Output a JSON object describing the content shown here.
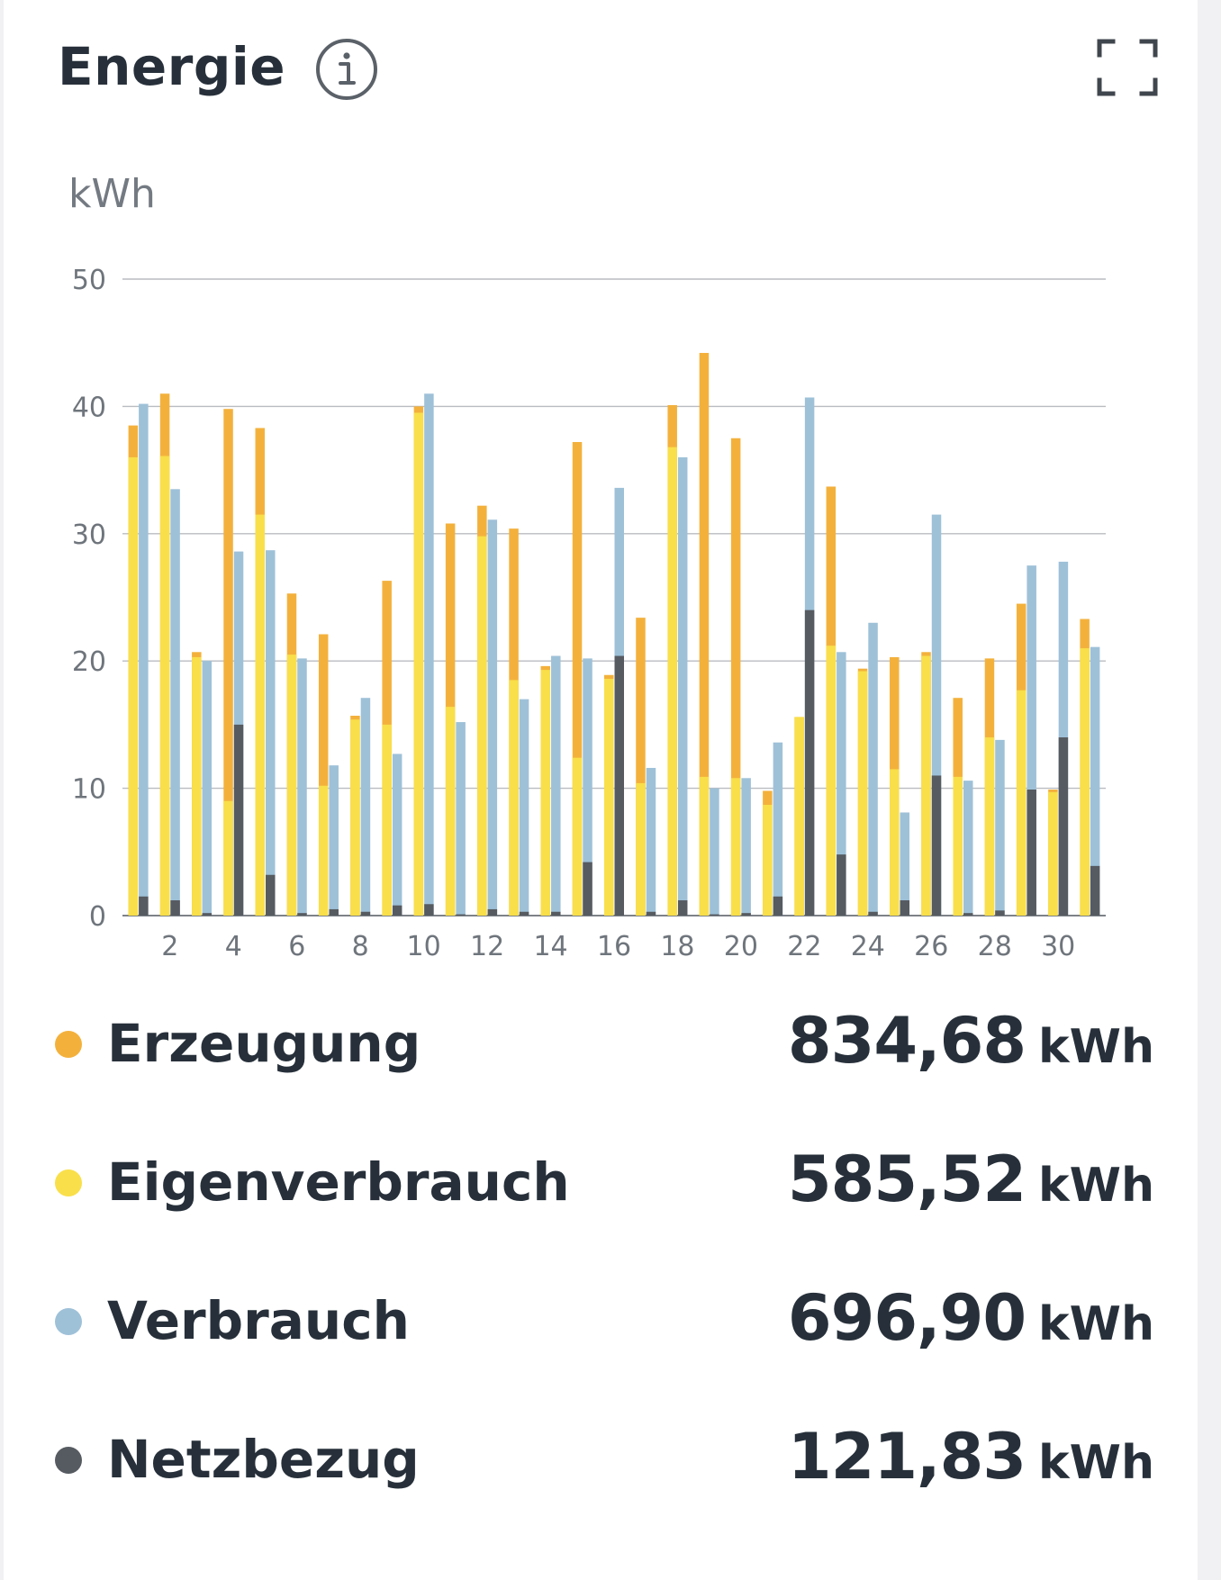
{
  "header": {
    "title": "Energie",
    "info_icon": "info-icon",
    "fullscreen_icon": "fullscreen-icon"
  },
  "chart_data": {
    "type": "bar",
    "title": "",
    "ylabel": "kWh",
    "xlabel": "",
    "ylim": [
      0,
      50
    ],
    "yticks": [
      0,
      10,
      20,
      30,
      40,
      50
    ],
    "xtick_labels": [
      "2",
      "4",
      "6",
      "8",
      "10",
      "12",
      "14",
      "16",
      "18",
      "20",
      "22",
      "24",
      "26",
      "28",
      "30"
    ],
    "x": [
      1,
      2,
      3,
      4,
      5,
      6,
      7,
      8,
      9,
      10,
      11,
      12,
      13,
      14,
      15,
      16,
      17,
      18,
      19,
      20,
      21,
      22,
      23,
      24,
      25,
      26,
      27,
      28,
      29,
      30,
      31
    ],
    "grid": true,
    "colors": {
      "erzeugung": "#f3b13c",
      "eigenverbrauch": "#f9df4a",
      "verbrauch": "#9ec1d8",
      "netzbezug": "#565b61"
    },
    "series": [
      {
        "name": "Erzeugung",
        "values": [
          38.5,
          41,
          20.7,
          39.8,
          38.3,
          25.3,
          22.1,
          15.7,
          26.3,
          40,
          30.8,
          32.2,
          30.4,
          19.6,
          37.2,
          18.9,
          23.4,
          40.1,
          44.2,
          37.5,
          9.8,
          15.6,
          33.7,
          19.4,
          20.3,
          20.7,
          17.1,
          20.2,
          24.5,
          9.9,
          23.3
        ]
      },
      {
        "name": "Eigenverbrauch",
        "values": [
          36,
          36.1,
          20.3,
          9,
          31.5,
          20.5,
          10.2,
          15.4,
          15,
          39.5,
          16.4,
          29.8,
          18.5,
          19.3,
          12.4,
          18.6,
          10.4,
          36.8,
          10.9,
          10.8,
          8.7,
          15.6,
          21.2,
          19.2,
          11.5,
          20.4,
          10.9,
          14,
          17.7,
          9.7,
          21
        ]
      },
      {
        "name": "Verbrauch",
        "values": [
          40.2,
          33.5,
          20,
          28.6,
          28.7,
          20.2,
          11.8,
          17.1,
          12.7,
          41,
          15.2,
          31.1,
          17,
          20.4,
          20.2,
          33.6,
          11.6,
          36,
          10,
          10.8,
          13.6,
          40.7,
          20.7,
          23,
          8.1,
          31.5,
          10.6,
          13.8,
          27.5,
          27.8,
          21.1
        ]
      },
      {
        "name": "Netzbezug",
        "values": [
          1.5,
          1.2,
          0.2,
          15,
          3.2,
          0.2,
          0.5,
          0.3,
          0.8,
          0.9,
          0.1,
          0.5,
          0.3,
          0.3,
          4.2,
          20.4,
          0.3,
          1.2,
          0.1,
          0.2,
          1.5,
          24,
          4.8,
          0.3,
          1.2,
          11,
          0.2,
          0.4,
          9.9,
          14,
          3.9
        ]
      }
    ]
  },
  "legend": [
    {
      "name": "Erzeugung",
      "value": "834,68",
      "unit": "kWh",
      "color": "#f3b13c"
    },
    {
      "name": "Eigenverbrauch",
      "value": "585,52",
      "unit": "kWh",
      "color": "#f9df4a"
    },
    {
      "name": "Verbrauch",
      "value": "696,90",
      "unit": "kWh",
      "color": "#9ec1d8"
    },
    {
      "name": "Netzbezug",
      "value": "121,83",
      "unit": "kWh",
      "color": "#565b61"
    }
  ]
}
